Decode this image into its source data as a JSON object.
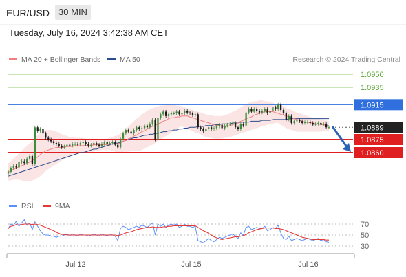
{
  "header": {
    "symbol": "EUR/USD",
    "timeframe": "30 MIN",
    "timestamp": "Tuesday, July 16, 2024 3:42:38 AM CET"
  },
  "legend": {
    "ma20": "MA 20 + Bollinger Bands",
    "ma50": "MA 50",
    "ma20_color": "#f08080",
    "ma50_color": "#2b4d8c",
    "rsi": "RSI",
    "rsi9": "9MA",
    "rsi_color": "#5b8ff9",
    "rsi9_color": "#e53935"
  },
  "credit": "Research © 2024 Trading Central",
  "chart_data": [
    {
      "type": "candlestick",
      "x_ticks": [
        "Jul 12",
        "Jul 15",
        "Jul 16"
      ],
      "levels": [
        {
          "value": 1.095,
          "label": "1.0950",
          "color": "#7cc04b",
          "kind": "target"
        },
        {
          "value": 1.0935,
          "label": "1.0935",
          "color": "#7cc04b",
          "kind": "target"
        },
        {
          "value": 1.0915,
          "label": "1.0915",
          "color": "#2f6fde",
          "kind": "pivot"
        },
        {
          "value": 1.0889,
          "label": "1.0889",
          "color": "#222222",
          "kind": "last"
        },
        {
          "value": 1.0875,
          "label": "1.0875",
          "color": "#e02020",
          "kind": "support"
        },
        {
          "value": 1.086,
          "label": "1.0860",
          "color": "#e02020",
          "kind": "support"
        }
      ],
      "close": [
        1.0838,
        1.0842,
        1.0845,
        1.0843,
        1.0849,
        1.085,
        1.0848,
        1.0853,
        1.0856,
        1.0847,
        1.0889,
        1.0885,
        1.0887,
        1.0882,
        1.0877,
        1.0875,
        1.0873,
        1.0871,
        1.087,
        1.0868,
        1.0866,
        1.0867,
        1.0869,
        1.0868,
        1.087,
        1.087,
        1.0869,
        1.0871,
        1.0872,
        1.087,
        1.0868,
        1.0869,
        1.0871,
        1.0869,
        1.0867,
        1.087,
        1.0872,
        1.087,
        1.0871,
        1.0872,
        1.0869,
        1.0866,
        1.0876,
        1.0882,
        1.0886,
        1.0884,
        1.0882,
        1.0886,
        1.0889,
        1.0887,
        1.0888,
        1.0891,
        1.0889,
        1.0893,
        1.0898,
        1.0875,
        1.09,
        1.0904,
        1.0907,
        1.0902,
        1.0904,
        1.0905,
        1.0905,
        1.0907,
        1.0904,
        1.0905,
        1.0908,
        1.0906,
        1.0905,
        1.0903,
        1.0904,
        1.0889,
        1.0887,
        1.0885,
        1.0887,
        1.0889,
        1.0887,
        1.0888,
        1.089,
        1.0892,
        1.0888,
        1.0891,
        1.0892,
        1.0893,
        1.0894,
        1.0889,
        1.0887,
        1.0893,
        1.0891,
        1.0906,
        1.091,
        1.0907,
        1.091,
        1.0908,
        1.0906,
        1.0908,
        1.091,
        1.0905,
        1.0908,
        1.0912,
        1.091,
        1.0915,
        1.0909,
        1.0905,
        1.0898,
        1.0902,
        1.0894,
        1.0896,
        1.0897,
        1.0896,
        1.0894,
        1.0895,
        1.0895,
        1.0894,
        1.0892,
        1.0893,
        1.0894,
        1.0892,
        1.0893,
        1.0889,
        1.0889
      ],
      "ma20": [
        1.0838,
        1.0839,
        1.0841,
        1.0842,
        1.0844,
        1.0845,
        1.0846,
        1.0848,
        1.0849,
        1.0851,
        1.0853,
        1.0855,
        1.0858,
        1.086,
        1.0862,
        1.0863,
        1.0864,
        1.0865,
        1.0866,
        1.0866,
        1.0866,
        1.0866,
        1.0867,
        1.0867,
        1.0867,
        1.0868,
        1.0868,
        1.0868,
        1.0868,
        1.0868,
        1.0868,
        1.0868,
        1.0869,
        1.0869,
        1.0869,
        1.0869,
        1.0869,
        1.0869,
        1.087,
        1.087,
        1.087,
        1.087,
        1.0871,
        1.0873,
        1.0874,
        1.0876,
        1.0877,
        1.0879,
        1.088,
        1.0882,
        1.0884,
        1.0885,
        1.0887,
        1.0889,
        1.089,
        1.0891,
        1.0893,
        1.0894,
        1.0896,
        1.0897,
        1.0899,
        1.09,
        1.09,
        1.0901,
        1.0901,
        1.0902,
        1.0902,
        1.0902,
        1.0901,
        1.09,
        1.0899,
        1.0898,
        1.0897,
        1.0896,
        1.0895,
        1.0894,
        1.0893,
        1.0892,
        1.0891,
        1.0891,
        1.089,
        1.089,
        1.089,
        1.0891,
        1.0892,
        1.0893,
        1.0894,
        1.0896,
        1.0897,
        1.0899,
        1.09,
        1.0901,
        1.0903,
        1.0904,
        1.0905,
        1.0906,
        1.0907,
        1.0907,
        1.0907,
        1.0907,
        1.0906,
        1.0905,
        1.0904,
        1.0903,
        1.0902,
        1.0901,
        1.09,
        1.0899,
        1.0898,
        1.0897,
        1.0896,
        1.0895,
        1.0895,
        1.0894,
        1.0894,
        1.0893,
        1.0893,
        1.0892,
        1.0892,
        1.0891,
        1.0891
      ],
      "ma50": [
        1.0833,
        1.0834,
        1.0835,
        1.0836,
        1.0837,
        1.0838,
        1.0839,
        1.084,
        1.0841,
        1.0842,
        1.0843,
        1.0844,
        1.0845,
        1.0846,
        1.0847,
        1.0848,
        1.0849,
        1.085,
        1.0851,
        1.0852,
        1.0853,
        1.0854,
        1.0855,
        1.0856,
        1.0857,
        1.0858,
        1.0859,
        1.086,
        1.086,
        1.0861,
        1.0862,
        1.0863,
        1.0864,
        1.0864,
        1.0865,
        1.0866,
        1.0867,
        1.0868,
        1.0869,
        1.087,
        1.0871,
        1.0871,
        1.0872,
        1.0873,
        1.0874,
        1.0875,
        1.0876,
        1.0877,
        1.0877,
        1.0878,
        1.0879,
        1.088,
        1.088,
        1.0881,
        1.0881,
        1.0882,
        1.0882,
        1.0883,
        1.0884,
        1.0884,
        1.0885,
        1.0885,
        1.0886,
        1.0886,
        1.0887,
        1.0887,
        1.0888,
        1.0888,
        1.0889,
        1.0889,
        1.0889,
        1.089,
        1.089,
        1.089,
        1.0891,
        1.0891,
        1.0891,
        1.0892,
        1.0892,
        1.0892,
        1.0893,
        1.0893,
        1.0893,
        1.0893,
        1.0894,
        1.0894,
        1.0894,
        1.0895,
        1.0895,
        1.0895,
        1.0895,
        1.0896,
        1.0896,
        1.0896,
        1.0896,
        1.0897,
        1.0897,
        1.0897,
        1.0897,
        1.0898,
        1.0898,
        1.0898,
        1.0898,
        1.0898,
        1.0898,
        1.0899,
        1.0899,
        1.0899,
        1.0899,
        1.0899,
        1.0899,
        1.0899,
        1.0899,
        1.0899,
        1.0899,
        1.0899,
        1.0899,
        1.0899,
        1.0899,
        1.0899,
        1.0899
      ],
      "bb_upper": [
        1.0848,
        1.085,
        1.0853,
        1.0856,
        1.0859,
        1.0862,
        1.0865,
        1.0868,
        1.087,
        1.0873,
        1.0877,
        1.088,
        1.0883,
        1.0885,
        1.0886,
        1.0886,
        1.0886,
        1.0885,
        1.0884,
        1.0883,
        1.0881,
        1.088,
        1.0879,
        1.0878,
        1.0878,
        1.0877,
        1.0877,
        1.0877,
        1.0877,
        1.0876,
        1.0876,
        1.0876,
        1.0876,
        1.0876,
        1.0875,
        1.0875,
        1.0876,
        1.0876,
        1.0877,
        1.0878,
        1.0879,
        1.088,
        1.0882,
        1.0884,
        1.0887,
        1.089,
        1.0893,
        1.0896,
        1.0899,
        1.0901,
        1.0904,
        1.0906,
        1.0908,
        1.091,
        1.0911,
        1.0912,
        1.0913,
        1.0914,
        1.0914,
        1.0915,
        1.0915,
        1.0915,
        1.0915,
        1.0914,
        1.0914,
        1.0913,
        1.0912,
        1.0911,
        1.091,
        1.0909,
        1.0908,
        1.0907,
        1.0906,
        1.0905,
        1.0904,
        1.0903,
        1.0903,
        1.0902,
        1.0902,
        1.0902,
        1.0902,
        1.0903,
        1.0904,
        1.0905,
        1.0907,
        1.0908,
        1.091,
        1.0912,
        1.0914,
        1.0915,
        1.0917,
        1.0918,
        1.0919,
        1.0919,
        1.092,
        1.092,
        1.0919,
        1.0919,
        1.0918,
        1.0917,
        1.0916,
        1.0915,
        1.0914,
        1.0913,
        1.0911,
        1.091,
        1.0909,
        1.0907,
        1.0906,
        1.0905,
        1.0904,
        1.0903,
        1.0902,
        1.0901,
        1.09,
        1.0899,
        1.0899,
        1.0898,
        1.0898,
        1.0897,
        1.0896
      ],
      "bb_lower": [
        1.0828,
        1.0828,
        1.0829,
        1.0829,
        1.0829,
        1.0828,
        1.0827,
        1.0827,
        1.0827,
        1.0828,
        1.0829,
        1.0831,
        1.0833,
        1.0836,
        1.0839,
        1.0841,
        1.0843,
        1.0845,
        1.0847,
        1.0849,
        1.0851,
        1.0853,
        1.0854,
        1.0856,
        1.0857,
        1.0858,
        1.0859,
        1.086,
        1.086,
        1.086,
        1.0861,
        1.0861,
        1.0861,
        1.0862,
        1.0862,
        1.0863,
        1.0863,
        1.0863,
        1.0863,
        1.0862,
        1.0861,
        1.086,
        1.0859,
        1.0861,
        1.0861,
        1.0861,
        1.0862,
        1.0862,
        1.0862,
        1.0862,
        1.0863,
        1.0865,
        1.0866,
        1.0868,
        1.0869,
        1.0871,
        1.0873,
        1.0875,
        1.0877,
        1.0879,
        1.0881,
        1.0883,
        1.0885,
        1.0887,
        1.0889,
        1.089,
        1.0889,
        1.0887,
        1.0886,
        1.0885,
        1.0883,
        1.0882,
        1.0881,
        1.0879,
        1.0878,
        1.0877,
        1.0877,
        1.0876,
        1.0876,
        1.0876,
        1.0876,
        1.0877,
        1.0877,
        1.0878,
        1.0879,
        1.088,
        1.0881,
        1.0882,
        1.0883,
        1.0884,
        1.0885,
        1.0886,
        1.0887,
        1.0888,
        1.0889,
        1.089,
        1.0891,
        1.0892,
        1.0893,
        1.0893,
        1.0894,
        1.0894,
        1.0892,
        1.089,
        1.0888,
        1.0887,
        1.0886,
        1.0885,
        1.0884,
        1.0884,
        1.0884,
        1.0884,
        1.0884,
        1.0884,
        1.0884,
        1.0884,
        1.0884,
        1.0884,
        1.0885,
        1.0885,
        1.0885
      ],
      "forecast": {
        "from": 1.0889,
        "to": 1.0875
      }
    },
    {
      "type": "line",
      "y_ticks": [
        70,
        50,
        30
      ],
      "ylim": [
        25,
        80
      ],
      "rsi": [
        62,
        70,
        68,
        75,
        66,
        72,
        78,
        68,
        72,
        60,
        74,
        66,
        58,
        52,
        50,
        50,
        48,
        48,
        46,
        48,
        48,
        50,
        52,
        49,
        52,
        50,
        48,
        52,
        50,
        50,
        48,
        50,
        52,
        50,
        48,
        52,
        50,
        48,
        52,
        50,
        48,
        40,
        62,
        66,
        64,
        60,
        62,
        64,
        66,
        64,
        68,
        66,
        64,
        68,
        72,
        50,
        70,
        66,
        70,
        64,
        68,
        70,
        68,
        70,
        64,
        66,
        70,
        66,
        66,
        64,
        66,
        40,
        38,
        36,
        40,
        44,
        40,
        38,
        42,
        46,
        44,
        46,
        48,
        50,
        52,
        48,
        44,
        54,
        50,
        64,
        66,
        60,
        62,
        64,
        62,
        62,
        66,
        58,
        60,
        64,
        62,
        68,
        54,
        44,
        42,
        48,
        40,
        42,
        44,
        42,
        40,
        42,
        44,
        42,
        40,
        42,
        44,
        40,
        42,
        38,
        37
      ],
      "ma9": [
        62,
        66,
        67,
        69,
        68,
        69,
        70,
        70,
        70,
        69,
        70,
        69,
        68,
        66,
        64,
        62,
        60,
        58,
        55,
        53,
        51,
        51,
        50,
        50,
        50,
        50,
        50,
        50,
        50,
        50,
        50,
        50,
        50,
        50,
        50,
        50,
        50,
        50,
        50,
        50,
        50,
        49,
        50,
        52,
        54,
        55,
        56,
        58,
        60,
        61,
        62,
        63,
        64,
        64,
        65,
        64,
        64,
        64,
        65,
        65,
        66,
        66,
        67,
        67,
        67,
        67,
        67,
        67,
        67,
        67,
        67,
        64,
        61,
        58,
        56,
        53,
        50,
        47,
        45,
        43,
        42,
        43,
        44,
        45,
        46,
        47,
        47,
        48,
        49,
        51,
        54,
        56,
        58,
        60,
        61,
        62,
        63,
        63,
        63,
        63,
        62,
        62,
        61,
        60,
        58,
        56,
        54,
        52,
        50,
        48,
        46,
        45,
        44,
        43,
        42,
        42,
        42,
        42,
        42,
        41,
        41
      ]
    }
  ]
}
